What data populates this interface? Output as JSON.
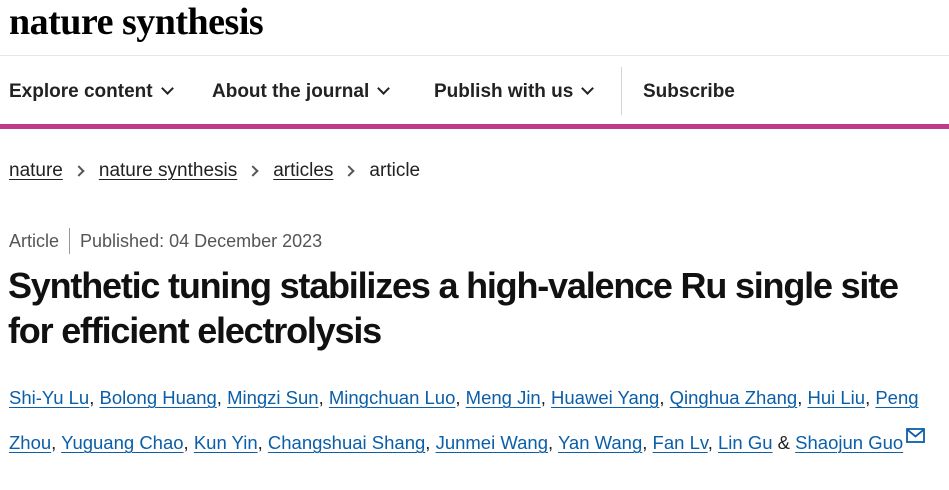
{
  "header": {
    "logo": "nature synthesis"
  },
  "nav": {
    "items": [
      {
        "label": "Explore content",
        "has_dropdown": true
      },
      {
        "label": "About the journal",
        "has_dropdown": true
      },
      {
        "label": "Publish with us",
        "has_dropdown": true
      },
      {
        "label": "Subscribe",
        "has_dropdown": false
      }
    ],
    "accent_color": "#c23b88"
  },
  "breadcrumb": {
    "items": [
      "nature",
      "nature synthesis",
      "articles"
    ],
    "current": "article"
  },
  "article": {
    "type": "Article",
    "published": "Published: 04 December 2023",
    "title_line1": "Synthetic tuning stabilizes a high-valence Ru single site",
    "title_line2": "for efficient electrolysis",
    "authors": [
      "Shi-Yu Lu",
      "Bolong Huang",
      "Mingzi Sun",
      "Mingchuan Luo",
      "Meng Jin",
      "Huawei Yang",
      "Qinghua Zhang",
      "Hui Liu",
      "Peng Zhou",
      "Yuguang Chao",
      "Kun Yin",
      "Changshuai Shang",
      "Junmei Wang",
      "Yan Wang",
      "Fan Lv",
      "Lin Gu",
      "Shaojun Guo"
    ],
    "author_separator": ",",
    "author_conjunction": "&",
    "contact_icon": "mail-icon",
    "link_color": "#0b5ea8"
  }
}
